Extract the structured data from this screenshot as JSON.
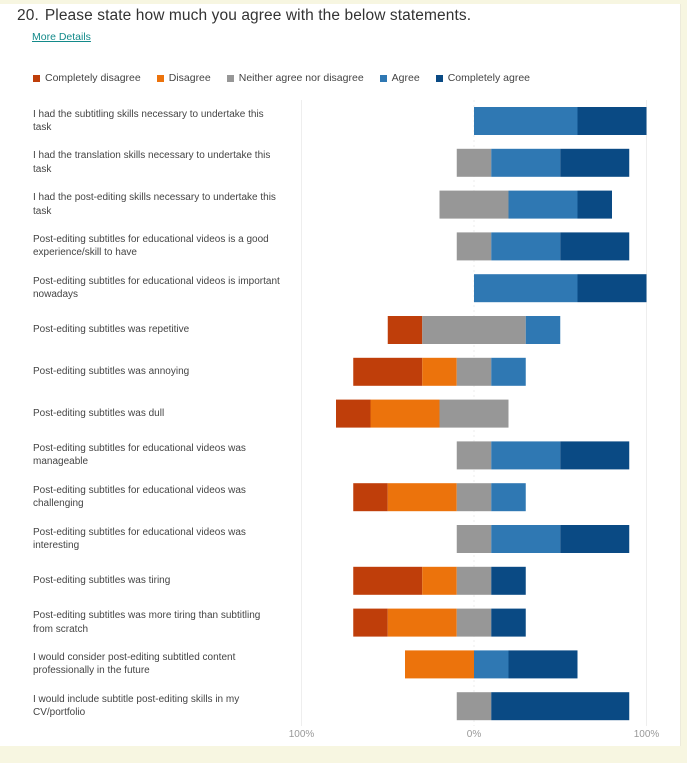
{
  "question": {
    "number": "20.",
    "title": "Please state how much you agree with the below statements.",
    "more_details_label": "More Details"
  },
  "colors": {
    "Completely disagree": "#bf3e0a",
    "Disagree": "#ec730c",
    "Neither agree nor disagree": "#979797",
    "Agree": "#2f78b3",
    "Completely agree": "#0a4a84",
    "gridline": "#eeeeee",
    "link": "#138a8a"
  },
  "chart_data": {
    "type": "bar",
    "subtype": "diverging-stacked-horizontal",
    "title": "Please state how much you agree with the below statements.",
    "legend": [
      "Completely disagree",
      "Disagree",
      "Neither agree nor disagree",
      "Agree",
      "Completely agree"
    ],
    "legend_position": "top-left",
    "x_ticks": [
      "100%",
      "0%",
      "100%"
    ],
    "xlim": [
      -100,
      100
    ],
    "grid": true,
    "units": "percent of respondents",
    "categories": [
      "I had the subtitling skills necessary to undertake this task",
      "I had the translation skills necessary to undertake this task",
      "I had the post-editing skills necessary to undertake this task",
      "Post-editing subtitles for educational videos is a good experience/skill to have",
      "Post-editing subtitles for educational videos is important nowadays",
      "Post-editing subtitles was repetitive",
      "Post-editing subtitles was annoying",
      "Post-editing subtitles was dull",
      "Post-editing subtitles for educational videos was manageable",
      "Post-editing subtitles for educational videos was challenging",
      "Post-editing subtitles for educational videos was interesting",
      "Post-editing subtitles was tiring",
      "Post-editing subtitles was more tiring than subtitling from scratch",
      "I would consider post-editing subtitled content professionally in the future",
      "I would include subtitle post-editing skills in my CV/portfolio"
    ],
    "series": [
      {
        "name": "Completely disagree",
        "values": [
          0,
          0,
          0,
          0,
          0,
          20,
          40,
          20,
          0,
          20,
          0,
          40,
          20,
          0,
          0
        ]
      },
      {
        "name": "Disagree",
        "values": [
          0,
          0,
          0,
          0,
          0,
          0,
          20,
          40,
          0,
          40,
          0,
          20,
          40,
          40,
          0
        ]
      },
      {
        "name": "Neither agree nor disagree",
        "values": [
          0,
          20,
          40,
          20,
          0,
          60,
          20,
          40,
          20,
          20,
          20,
          20,
          20,
          0,
          20
        ]
      },
      {
        "name": "Agree",
        "values": [
          60,
          40,
          40,
          40,
          60,
          20,
          20,
          0,
          40,
          20,
          40,
          0,
          0,
          20,
          0
        ]
      },
      {
        "name": "Completely agree",
        "values": [
          40,
          40,
          20,
          40,
          40,
          0,
          0,
          0,
          40,
          0,
          40,
          20,
          20,
          40,
          80
        ]
      }
    ]
  }
}
